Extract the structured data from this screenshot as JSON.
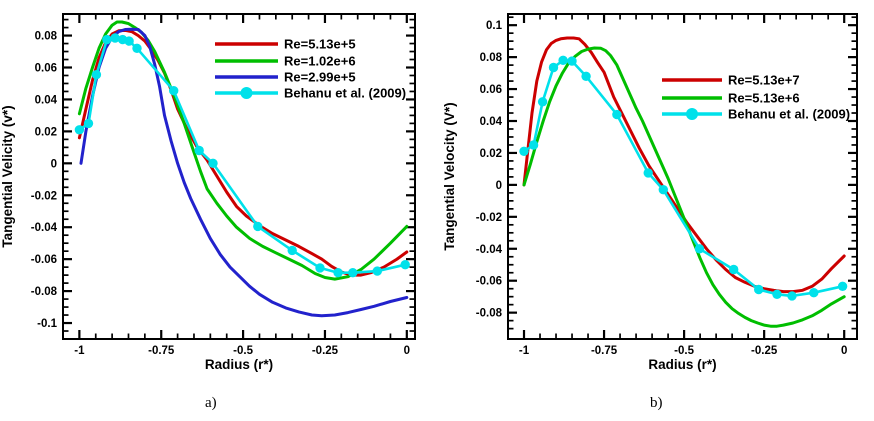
{
  "figure": {
    "background": "#ffffff"
  },
  "captions": {
    "a": "a)",
    "b": "b)"
  },
  "palette": {
    "red": "#cc0000",
    "green": "#00be00",
    "blue": "#2222cc",
    "cyan": "#00e1ea",
    "axis": "#000000"
  },
  "chart_data": [
    {
      "id": "a",
      "type": "line",
      "title": "",
      "xlabel": "Radius (r*)",
      "ylabel": "Tangential Velicity (v*)",
      "xlim": [
        -1.05,
        0.025
      ],
      "ylim": [
        -0.11,
        0.0935
      ],
      "grid": false,
      "legend_position": "upper-right-inside",
      "xticks": {
        "values": [
          -1,
          -0.75,
          -0.5,
          -0.25,
          0
        ],
        "labels": [
          "-1",
          "-0.75",
          "-0.5",
          "-0.25",
          "0"
        ],
        "minor_step": 0.05
      },
      "yticks": {
        "values": [
          0.08,
          0.06,
          0.04,
          0.02,
          0,
          -0.02,
          -0.04,
          -0.06,
          -0.08,
          -0.1
        ],
        "labels": [
          "0.08",
          "0.06",
          "0.04",
          "0.02",
          "0",
          "-0.02",
          "-0.04",
          "-0.06",
          "-0.08",
          "-0.1"
        ],
        "minor_step": 0.005
      },
      "series": [
        {
          "name": "Re=5.13e+5",
          "color": "#cc0000",
          "markers": false,
          "points": [
            [
              -1,
              0.016
            ],
            [
              -0.98,
              0.034
            ],
            [
              -0.96,
              0.052
            ],
            [
              -0.94,
              0.066
            ],
            [
              -0.92,
              0.0755
            ],
            [
              -0.9,
              0.081
            ],
            [
              -0.88,
              0.083
            ],
            [
              -0.86,
              0.0832
            ],
            [
              -0.84,
              0.0825
            ],
            [
              -0.82,
              0.08
            ],
            [
              -0.8,
              0.0765
            ],
            [
              -0.78,
              0.071
            ],
            [
              -0.76,
              0.0645
            ],
            [
              -0.74,
              0.0565
            ],
            [
              -0.72,
              0.046
            ],
            [
              -0.7,
              0.034
            ],
            [
              -0.67,
              0.021
            ],
            [
              -0.64,
              0.01
            ],
            [
              -0.61,
              0.002
            ],
            [
              -0.58,
              -0.008
            ],
            [
              -0.55,
              -0.018
            ],
            [
              -0.52,
              -0.027
            ],
            [
              -0.49,
              -0.033
            ],
            [
              -0.45,
              -0.039
            ],
            [
              -0.41,
              -0.044
            ],
            [
              -0.37,
              -0.048
            ],
            [
              -0.33,
              -0.052
            ],
            [
              -0.29,
              -0.0565
            ],
            [
              -0.26,
              -0.06
            ],
            [
              -0.23,
              -0.0645
            ],
            [
              -0.2,
              -0.068
            ],
            [
              -0.17,
              -0.07
            ],
            [
              -0.14,
              -0.07
            ],
            [
              -0.11,
              -0.0685
            ],
            [
              -0.07,
              -0.065
            ],
            [
              -0.03,
              -0.06
            ],
            [
              0,
              -0.0555
            ]
          ]
        },
        {
          "name": "Re=1.02e+6",
          "color": "#00be00",
          "markers": false,
          "points": [
            [
              -1,
              0.031
            ],
            [
              -0.98,
              0.047
            ],
            [
              -0.96,
              0.06
            ],
            [
              -0.94,
              0.072
            ],
            [
              -0.92,
              0.081
            ],
            [
              -0.9,
              0.0865
            ],
            [
              -0.885,
              0.0885
            ],
            [
              -0.87,
              0.0885
            ],
            [
              -0.85,
              0.0875
            ],
            [
              -0.83,
              0.085
            ],
            [
              -0.81,
              0.082
            ],
            [
              -0.79,
              0.077
            ],
            [
              -0.77,
              0.07
            ],
            [
              -0.74,
              0.057
            ],
            [
              -0.71,
              0.042
            ],
            [
              -0.68,
              0.025
            ],
            [
              -0.655,
              0.01
            ],
            [
              -0.63,
              -0.005
            ],
            [
              -0.61,
              -0.016
            ],
            [
              -0.58,
              -0.025
            ],
            [
              -0.55,
              -0.033
            ],
            [
              -0.52,
              -0.04
            ],
            [
              -0.48,
              -0.047
            ],
            [
              -0.44,
              -0.052
            ],
            [
              -0.4,
              -0.056
            ],
            [
              -0.36,
              -0.06
            ],
            [
              -0.32,
              -0.064
            ],
            [
              -0.28,
              -0.069
            ],
            [
              -0.25,
              -0.0715
            ],
            [
              -0.22,
              -0.0725
            ],
            [
              -0.18,
              -0.071
            ],
            [
              -0.14,
              -0.0665
            ],
            [
              -0.1,
              -0.06
            ],
            [
              -0.05,
              -0.05
            ],
            [
              0,
              -0.0395
            ]
          ]
        },
        {
          "name": "Re=2.99e+5",
          "color": "#2222cc",
          "markers": false,
          "points": [
            [
              -0.995,
              0
            ],
            [
              -0.98,
              0.02
            ],
            [
              -0.96,
              0.042
            ],
            [
              -0.94,
              0.06
            ],
            [
              -0.92,
              0.072
            ],
            [
              -0.9,
              0.079
            ],
            [
              -0.88,
              0.0825
            ],
            [
              -0.86,
              0.0838
            ],
            [
              -0.84,
              0.084
            ],
            [
              -0.82,
              0.0838
            ],
            [
              -0.8,
              0.08
            ],
            [
              -0.785,
              0.073
            ],
            [
              -0.77,
              0.062
            ],
            [
              -0.755,
              0.048
            ],
            [
              -0.74,
              0.03
            ],
            [
              -0.72,
              0.014
            ],
            [
              -0.7,
              0
            ],
            [
              -0.68,
              -0.012
            ],
            [
              -0.66,
              -0.022
            ],
            [
              -0.63,
              -0.035
            ],
            [
              -0.6,
              -0.047
            ],
            [
              -0.57,
              -0.057
            ],
            [
              -0.54,
              -0.065
            ],
            [
              -0.51,
              -0.071
            ],
            [
              -0.48,
              -0.077
            ],
            [
              -0.45,
              -0.082
            ],
            [
              -0.41,
              -0.087
            ],
            [
              -0.37,
              -0.0905
            ],
            [
              -0.33,
              -0.093
            ],
            [
              -0.29,
              -0.095
            ],
            [
              -0.26,
              -0.0955
            ],
            [
              -0.22,
              -0.095
            ],
            [
              -0.18,
              -0.0935
            ],
            [
              -0.14,
              -0.0915
            ],
            [
              -0.1,
              -0.0895
            ],
            [
              -0.05,
              -0.0865
            ],
            [
              0,
              -0.084
            ]
          ]
        },
        {
          "name": "Behanu et al. (2009)",
          "color": "#00e1ea",
          "markers": true,
          "points": [
            [
              -1,
              0.021
            ],
            [
              -0.972,
              0.025
            ],
            [
              -0.948,
              0.0555
            ],
            [
              -0.916,
              0.0775
            ],
            [
              -0.891,
              0.0785
            ],
            [
              -0.868,
              0.0775
            ],
            [
              -0.848,
              0.0765
            ],
            [
              -0.824,
              0.072
            ],
            [
              -0.712,
              0.0455
            ],
            [
              -0.634,
              0.008
            ],
            [
              -0.592,
              0
            ],
            [
              -0.455,
              -0.0395
            ],
            [
              -0.35,
              -0.0545
            ],
            [
              -0.265,
              -0.0655
            ],
            [
              -0.21,
              -0.0685
            ],
            [
              -0.165,
              -0.0685
            ],
            [
              -0.09,
              -0.0675
            ],
            [
              -0.005,
              -0.0635
            ]
          ]
        }
      ]
    },
    {
      "id": "b",
      "type": "line",
      "title": "",
      "xlabel": "Radius (r*)",
      "ylabel": "Tangential Velocity (V*)",
      "xlim": [
        -1.05,
        0.04
      ],
      "ylim": [
        -0.0965,
        0.107
      ],
      "grid": false,
      "legend_position": "upper-right-inside",
      "xticks": {
        "values": [
          -1,
          -0.75,
          -0.5,
          -0.25,
          0
        ],
        "labels": [
          "-1",
          "-0.75",
          "-0.5",
          "-0.25",
          "0"
        ],
        "minor_step": 0.05
      },
      "yticks": {
        "values": [
          0.1,
          0.08,
          0.06,
          0.04,
          0.02,
          0,
          -0.02,
          -0.04,
          -0.06,
          -0.08
        ],
        "labels": [
          "0.1",
          "0.08",
          "0.06",
          "0.04",
          "0.02",
          "0",
          "-0.02",
          "-0.04",
          "-0.06",
          "-0.08"
        ],
        "minor_step": 0.005
      },
      "series": [
        {
          "name": "Re=5.13e+7",
          "color": "#cc0000",
          "markers": false,
          "points": [
            [
              -1,
              0
            ],
            [
              -0.99,
              0.018
            ],
            [
              -0.975,
              0.045
            ],
            [
              -0.96,
              0.065
            ],
            [
              -0.945,
              0.077
            ],
            [
              -0.93,
              0.0845
            ],
            [
              -0.915,
              0.0885
            ],
            [
              -0.9,
              0.0905
            ],
            [
              -0.885,
              0.0915
            ],
            [
              -0.865,
              0.092
            ],
            [
              -0.845,
              0.092
            ],
            [
              -0.828,
              0.0915
            ],
            [
              -0.81,
              0.088
            ],
            [
              -0.79,
              0.083
            ],
            [
              -0.77,
              0.0765
            ],
            [
              -0.75,
              0.0705
            ],
            [
              -0.72,
              0.055
            ],
            [
              -0.7,
              0.047
            ],
            [
              -0.67,
              0.035
            ],
            [
              -0.64,
              0.023
            ],
            [
              -0.61,
              0.012
            ],
            [
              -0.58,
              0.003
            ],
            [
              -0.55,
              -0.006
            ],
            [
              -0.52,
              -0.015
            ],
            [
              -0.49,
              -0.024
            ],
            [
              -0.46,
              -0.032
            ],
            [
              -0.43,
              -0.04
            ],
            [
              -0.4,
              -0.047
            ],
            [
              -0.37,
              -0.053
            ],
            [
              -0.34,
              -0.058
            ],
            [
              -0.31,
              -0.061
            ],
            [
              -0.28,
              -0.0635
            ],
            [
              -0.25,
              -0.065
            ],
            [
              -0.22,
              -0.066
            ],
            [
              -0.19,
              -0.0668
            ],
            [
              -0.16,
              -0.0668
            ],
            [
              -0.13,
              -0.066
            ],
            [
              -0.1,
              -0.0635
            ],
            [
              -0.07,
              -0.059
            ],
            [
              -0.04,
              -0.0525
            ],
            [
              0,
              -0.0445
            ]
          ]
        },
        {
          "name": "Re=5.13e+6",
          "color": "#00be00",
          "markers": false,
          "points": [
            [
              -1,
              0
            ],
            [
              -0.98,
              0.013
            ],
            [
              -0.96,
              0.027
            ],
            [
              -0.94,
              0.04
            ],
            [
              -0.92,
              0.052
            ],
            [
              -0.9,
              0.062
            ],
            [
              -0.88,
              0.07
            ],
            [
              -0.86,
              0.0765
            ],
            [
              -0.84,
              0.0805
            ],
            [
              -0.82,
              0.0835
            ],
            [
              -0.8,
              0.085
            ],
            [
              -0.78,
              0.0857
            ],
            [
              -0.76,
              0.0855
            ],
            [
              -0.745,
              0.084
            ],
            [
              -0.73,
              0.081
            ],
            [
              -0.71,
              0.075
            ],
            [
              -0.69,
              0.066
            ],
            [
              -0.67,
              0.057
            ],
            [
              -0.65,
              0.048
            ],
            [
              -0.63,
              0.04
            ],
            [
              -0.61,
              0.031
            ],
            [
              -0.59,
              0.022
            ],
            [
              -0.57,
              0.013
            ],
            [
              -0.55,
              0.004
            ],
            [
              -0.53,
              -0.006
            ],
            [
              -0.51,
              -0.016
            ],
            [
              -0.49,
              -0.026
            ],
            [
              -0.47,
              -0.036
            ],
            [
              -0.45,
              -0.046
            ],
            [
              -0.43,
              -0.055
            ],
            [
              -0.41,
              -0.0625
            ],
            [
              -0.39,
              -0.0685
            ],
            [
              -0.37,
              -0.0735
            ],
            [
              -0.35,
              -0.0775
            ],
            [
              -0.33,
              -0.0805
            ],
            [
              -0.31,
              -0.083
            ],
            [
              -0.29,
              -0.085
            ],
            [
              -0.27,
              -0.0865
            ],
            [
              -0.25,
              -0.0878
            ],
            [
              -0.23,
              -0.0885
            ],
            [
              -0.21,
              -0.0885
            ],
            [
              -0.19,
              -0.0878
            ],
            [
              -0.16,
              -0.0865
            ],
            [
              -0.13,
              -0.0845
            ],
            [
              -0.1,
              -0.082
            ],
            [
              -0.07,
              -0.0785
            ],
            [
              -0.04,
              -0.0745
            ],
            [
              0,
              -0.07
            ]
          ]
        },
        {
          "name": "Behanu et al. (2009)",
          "color": "#00e1ea",
          "markers": true,
          "points": [
            [
              -1,
              0.021
            ],
            [
              -0.97,
              0.025
            ],
            [
              -0.942,
              0.052
            ],
            [
              -0.908,
              0.0735
            ],
            [
              -0.878,
              0.078
            ],
            [
              -0.85,
              0.0775
            ],
            [
              -0.806,
              0.068
            ],
            [
              -0.71,
              0.044
            ],
            [
              -0.612,
              0.0075
            ],
            [
              -0.565,
              -0.003
            ],
            [
              -0.452,
              -0.04
            ],
            [
              -0.345,
              -0.053
            ],
            [
              -0.267,
              -0.0655
            ],
            [
              -0.21,
              -0.0685
            ],
            [
              -0.163,
              -0.0695
            ],
            [
              -0.095,
              -0.0675
            ],
            [
              -0.005,
              -0.0635
            ]
          ]
        }
      ]
    }
  ]
}
